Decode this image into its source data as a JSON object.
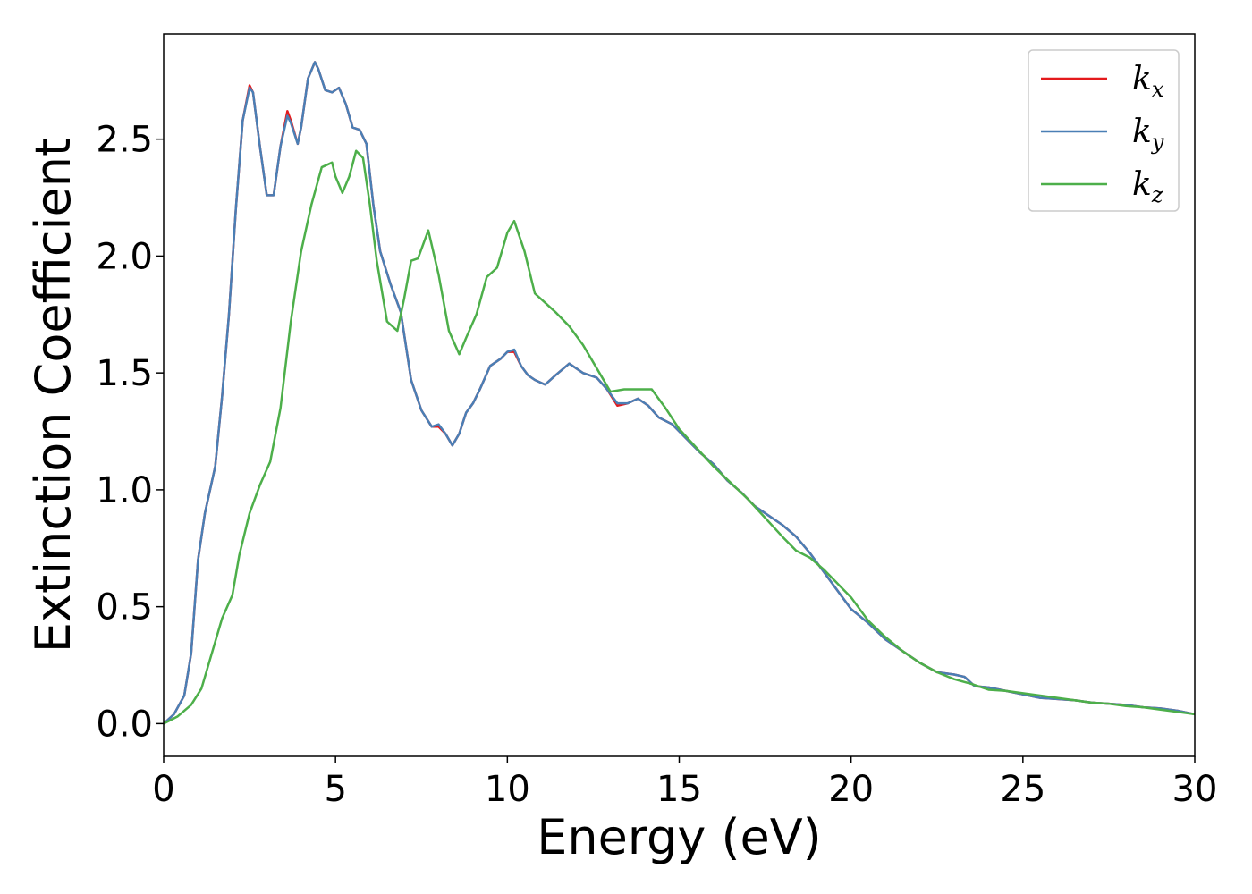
{
  "chart_data": {
    "type": "line",
    "xlabel": "Energy (eV)",
    "ylabel": "Extinction Coefficient",
    "xlim": [
      0,
      30
    ],
    "ylim": [
      -0.14,
      2.95
    ],
    "xticks": [
      0,
      5,
      10,
      15,
      20,
      25,
      30
    ],
    "yticks": [
      0.0,
      0.5,
      1.0,
      1.5,
      2.0,
      2.5
    ],
    "xtick_labels": [
      "0",
      "5",
      "10",
      "15",
      "20",
      "25",
      "30"
    ],
    "ytick_labels": [
      "0.0",
      "0.5",
      "1.0",
      "1.5",
      "2.0",
      "2.5"
    ],
    "grid": false,
    "legend_position": "top-right",
    "series": [
      {
        "name": "k_x",
        "label_main": "k",
        "label_sub": "x",
        "color": "#e41a1c",
        "x": [
          0,
          0.3,
          0.6,
          0.8,
          1.0,
          1.2,
          1.5,
          1.7,
          1.9,
          2.1,
          2.3,
          2.5,
          2.6,
          2.8,
          3.0,
          3.2,
          3.4,
          3.6,
          3.7,
          3.9,
          4.0,
          4.2,
          4.4,
          4.5,
          4.7,
          4.9,
          5.1,
          5.3,
          5.5,
          5.7,
          5.9,
          6.1,
          6.3,
          6.6,
          6.9,
          7.2,
          7.5,
          7.8,
          8.0,
          8.2,
          8.4,
          8.6,
          8.8,
          9.0,
          9.2,
          9.5,
          9.8,
          10.0,
          10.2,
          10.4,
          10.6,
          10.8,
          11.1,
          11.4,
          11.8,
          12.2,
          12.6,
          12.9,
          13.2,
          13.5,
          13.8,
          14.1,
          14.4,
          14.8,
          15.2,
          15.6,
          16.0,
          16.4,
          16.8,
          17.2,
          17.6,
          18.0,
          18.4,
          18.8,
          19.2,
          19.6,
          20.0,
          20.5,
          21.0,
          21.5,
          22.0,
          22.5,
          23.0,
          23.3,
          23.6,
          24.0,
          24.5,
          25.0,
          25.5,
          26.0,
          26.5,
          27.0,
          27.5,
          28.0,
          28.5,
          29.0,
          29.5,
          30.0
        ],
        "y": [
          0.0,
          0.04,
          0.12,
          0.3,
          0.7,
          0.9,
          1.1,
          1.4,
          1.75,
          2.2,
          2.58,
          2.73,
          2.7,
          2.47,
          2.26,
          2.26,
          2.47,
          2.62,
          2.58,
          2.48,
          2.55,
          2.76,
          2.83,
          2.8,
          2.71,
          2.7,
          2.72,
          2.65,
          2.55,
          2.54,
          2.48,
          2.22,
          2.02,
          1.88,
          1.76,
          1.47,
          1.34,
          1.27,
          1.27,
          1.24,
          1.19,
          1.24,
          1.33,
          1.37,
          1.43,
          1.53,
          1.56,
          1.59,
          1.59,
          1.53,
          1.49,
          1.47,
          1.45,
          1.49,
          1.54,
          1.5,
          1.48,
          1.43,
          1.36,
          1.37,
          1.39,
          1.36,
          1.31,
          1.28,
          1.22,
          1.16,
          1.11,
          1.04,
          0.99,
          0.93,
          0.89,
          0.85,
          0.8,
          0.73,
          0.65,
          0.57,
          0.49,
          0.43,
          0.36,
          0.31,
          0.26,
          0.22,
          0.21,
          0.2,
          0.16,
          0.155,
          0.14,
          0.125,
          0.11,
          0.105,
          0.1,
          0.09,
          0.085,
          0.08,
          0.07,
          0.065,
          0.055,
          0.04
        ]
      },
      {
        "name": "k_y",
        "label_main": "k",
        "label_sub": "y",
        "color": "#4a7fb5",
        "x": [
          0,
          0.3,
          0.6,
          0.8,
          1.0,
          1.2,
          1.5,
          1.7,
          1.9,
          2.1,
          2.3,
          2.5,
          2.6,
          2.8,
          3.0,
          3.2,
          3.4,
          3.6,
          3.7,
          3.9,
          4.0,
          4.2,
          4.4,
          4.5,
          4.7,
          4.9,
          5.1,
          5.3,
          5.5,
          5.7,
          5.9,
          6.1,
          6.3,
          6.6,
          6.9,
          7.2,
          7.5,
          7.8,
          8.0,
          8.2,
          8.4,
          8.6,
          8.8,
          9.0,
          9.2,
          9.5,
          9.8,
          10.0,
          10.2,
          10.4,
          10.6,
          10.8,
          11.1,
          11.4,
          11.8,
          12.2,
          12.6,
          12.9,
          13.2,
          13.5,
          13.8,
          14.1,
          14.4,
          14.8,
          15.2,
          15.6,
          16.0,
          16.4,
          16.8,
          17.2,
          17.6,
          18.0,
          18.4,
          18.8,
          19.2,
          19.6,
          20.0,
          20.5,
          21.0,
          21.5,
          22.0,
          22.5,
          23.0,
          23.3,
          23.6,
          24.0,
          24.5,
          25.0,
          25.5,
          26.0,
          26.5,
          27.0,
          27.5,
          28.0,
          28.5,
          29.0,
          29.5,
          30.0
        ],
        "y": [
          0.0,
          0.04,
          0.12,
          0.3,
          0.7,
          0.9,
          1.1,
          1.4,
          1.75,
          2.2,
          2.58,
          2.72,
          2.7,
          2.47,
          2.26,
          2.26,
          2.47,
          2.6,
          2.57,
          2.48,
          2.55,
          2.76,
          2.83,
          2.8,
          2.71,
          2.7,
          2.72,
          2.65,
          2.55,
          2.54,
          2.48,
          2.22,
          2.02,
          1.88,
          1.76,
          1.47,
          1.34,
          1.27,
          1.28,
          1.24,
          1.19,
          1.24,
          1.33,
          1.37,
          1.43,
          1.53,
          1.56,
          1.59,
          1.6,
          1.53,
          1.49,
          1.47,
          1.45,
          1.49,
          1.54,
          1.5,
          1.48,
          1.43,
          1.37,
          1.37,
          1.39,
          1.36,
          1.31,
          1.28,
          1.22,
          1.16,
          1.11,
          1.04,
          0.99,
          0.93,
          0.89,
          0.85,
          0.8,
          0.73,
          0.65,
          0.57,
          0.49,
          0.43,
          0.36,
          0.31,
          0.26,
          0.22,
          0.21,
          0.2,
          0.16,
          0.155,
          0.14,
          0.125,
          0.11,
          0.105,
          0.1,
          0.09,
          0.085,
          0.08,
          0.07,
          0.065,
          0.055,
          0.04
        ]
      },
      {
        "name": "k_z",
        "label_main": "k",
        "label_sub": "z",
        "color": "#4daf4a",
        "x": [
          0,
          0.4,
          0.8,
          1.1,
          1.4,
          1.7,
          2.0,
          2.2,
          2.5,
          2.8,
          3.1,
          3.4,
          3.7,
          4.0,
          4.3,
          4.6,
          4.9,
          5.0,
          5.2,
          5.4,
          5.6,
          5.8,
          6.0,
          6.2,
          6.5,
          6.8,
          7.0,
          7.2,
          7.4,
          7.7,
          8.0,
          8.3,
          8.6,
          8.8,
          9.1,
          9.4,
          9.7,
          10.0,
          10.2,
          10.5,
          10.8,
          11.1,
          11.4,
          11.8,
          12.2,
          12.6,
          13.0,
          13.4,
          13.8,
          14.2,
          14.6,
          15.0,
          15.5,
          16.0,
          16.5,
          17.0,
          17.5,
          18.0,
          18.4,
          18.8,
          19.2,
          19.6,
          20.0,
          20.5,
          21.0,
          21.5,
          22.0,
          22.5,
          23.0,
          23.5,
          24.0,
          24.5,
          25.0,
          25.5,
          26.0,
          26.5,
          27.0,
          27.5,
          28.0,
          28.5,
          29.0,
          29.5,
          30.0
        ],
        "y": [
          0.0,
          0.03,
          0.08,
          0.15,
          0.3,
          0.45,
          0.55,
          0.72,
          0.9,
          1.02,
          1.12,
          1.35,
          1.72,
          2.02,
          2.22,
          2.38,
          2.4,
          2.34,
          2.27,
          2.34,
          2.45,
          2.42,
          2.22,
          1.98,
          1.72,
          1.68,
          1.82,
          1.98,
          1.99,
          2.11,
          1.92,
          1.68,
          1.58,
          1.65,
          1.75,
          1.91,
          1.95,
          2.1,
          2.15,
          2.02,
          1.84,
          1.8,
          1.76,
          1.7,
          1.62,
          1.52,
          1.42,
          1.43,
          1.43,
          1.43,
          1.35,
          1.26,
          1.18,
          1.1,
          1.03,
          0.96,
          0.88,
          0.8,
          0.74,
          0.71,
          0.66,
          0.6,
          0.54,
          0.44,
          0.37,
          0.31,
          0.26,
          0.22,
          0.19,
          0.17,
          0.145,
          0.14,
          0.13,
          0.12,
          0.11,
          0.1,
          0.09,
          0.085,
          0.075,
          0.07,
          0.06,
          0.05,
          0.04
        ]
      }
    ]
  }
}
